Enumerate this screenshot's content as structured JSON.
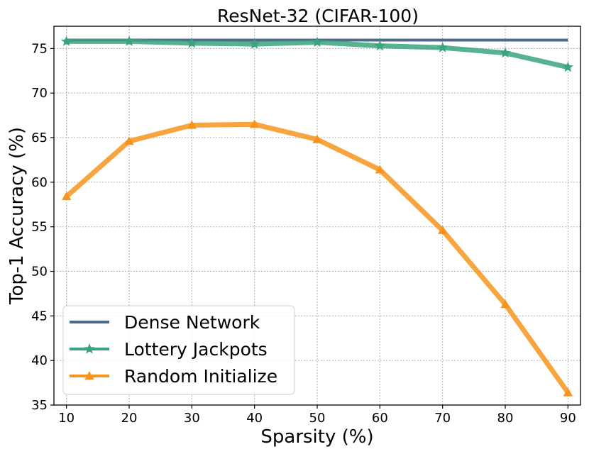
{
  "chart_data": {
    "type": "line",
    "title": "ResNet-32 (CIFAR-100)",
    "xlabel": "Sparsity (%)",
    "ylabel": "Top-1 Accuracy (%)",
    "x": [
      10,
      20,
      30,
      40,
      50,
      60,
      70,
      80,
      90
    ],
    "xticks": [
      10,
      20,
      30,
      40,
      50,
      60,
      70,
      80,
      90
    ],
    "yticks": [
      35,
      40,
      45,
      50,
      55,
      60,
      65,
      70,
      75
    ],
    "xlim": [
      8,
      92
    ],
    "ylim": [
      35,
      77.5
    ],
    "grid": true,
    "legend_position": "lower-left",
    "series": [
      {
        "name": "Dense Network",
        "color": "#4c6a8c",
        "marker": "none",
        "values": [
          75.95,
          75.95,
          75.95,
          75.95,
          75.95,
          75.95,
          75.95,
          75.95,
          75.95
        ]
      },
      {
        "name": "Lottery Jackpots",
        "color": "#3aa47c",
        "marker": "star",
        "values": [
          75.8,
          75.8,
          75.6,
          75.5,
          75.7,
          75.3,
          75.1,
          74.5,
          72.9
        ]
      },
      {
        "name": "Random Initialize",
        "color": "#f7941d",
        "marker": "triangle",
        "values": [
          58.4,
          64.6,
          66.4,
          66.5,
          64.8,
          61.4,
          54.6,
          46.3,
          36.4
        ]
      }
    ]
  }
}
